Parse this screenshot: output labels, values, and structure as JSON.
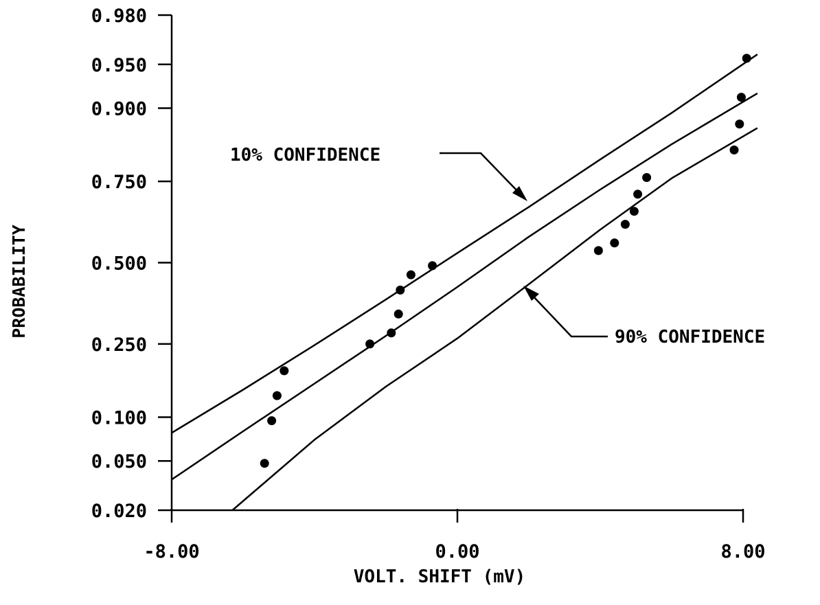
{
  "chart_data": {
    "type": "scatter",
    "title": "",
    "xlabel": "VOLT. SHIFT (mV)",
    "ylabel": "PROBABILITY",
    "y_scale": "normal-probability",
    "xlim": [
      -8,
      8
    ],
    "ylim": [
      0.02,
      0.98
    ],
    "x_ticks": [
      {
        "value": -8,
        "label": "-8.00"
      },
      {
        "value": 0,
        "label": "0.00"
      },
      {
        "value": 8,
        "label": "8.00"
      }
    ],
    "y_ticks": [
      {
        "value": 0.98,
        "label": "0.980"
      },
      {
        "value": 0.95,
        "label": "0.950"
      },
      {
        "value": 0.9,
        "label": "0.900"
      },
      {
        "value": 0.75,
        "label": "0.750"
      },
      {
        "value": 0.5,
        "label": "0.500"
      },
      {
        "value": 0.25,
        "label": "0.250"
      },
      {
        "value": 0.1,
        "label": "0.100"
      },
      {
        "value": 0.05,
        "label": "0.050"
      },
      {
        "value": 0.02,
        "label": "0.020"
      }
    ],
    "grid": false,
    "legend": "none",
    "points": {
      "x": [
        -5.4,
        -5.2,
        -5.05,
        -4.85,
        -2.45,
        -1.85,
        -1.65,
        -1.6,
        -1.3,
        -0.7,
        3.95,
        4.4,
        4.7,
        4.95,
        5.05,
        5.3,
        7.75,
        7.9,
        7.95,
        8.1
      ],
      "y": [
        0.048,
        0.095,
        0.135,
        0.185,
        0.25,
        0.28,
        0.335,
        0.41,
        0.46,
        0.49,
        0.54,
        0.565,
        0.625,
        0.665,
        0.715,
        0.76,
        0.825,
        0.875,
        0.915,
        0.955
      ]
    },
    "lines": [
      {
        "x": [
          -8,
          -6,
          -4,
          -2,
          0,
          2,
          4,
          6,
          8.4
        ],
        "y": [
          0.079,
          0.146,
          0.247,
          0.38,
          0.532,
          0.678,
          0.804,
          0.893,
          0.958
        ]
      },
      {
        "x": [
          -8,
          -6,
          -4,
          -2,
          0,
          2,
          4,
          6,
          8.4
        ],
        "y": [
          0.036,
          0.081,
          0.158,
          0.272,
          0.42,
          0.585,
          0.728,
          0.837,
          0.92
        ]
      },
      {
        "x": [
          -6.3,
          -4,
          -2,
          0,
          2,
          4,
          6,
          8.4
        ],
        "y": [
          0.02,
          0.071,
          0.152,
          0.265,
          0.429,
          0.608,
          0.758,
          0.868
        ]
      }
    ],
    "annotations": [
      {
        "text": "10% CONFIDENCE"
      },
      {
        "text": "90% CONFIDENCE"
      }
    ]
  }
}
